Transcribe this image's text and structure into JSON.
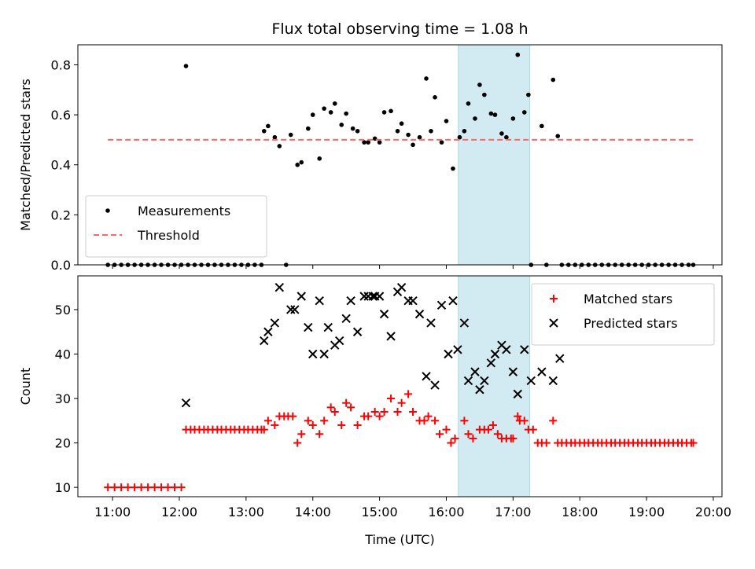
{
  "chart_data": {
    "title": "Flux total observing time = 1.08 h",
    "xlabel": "Time (UTC)",
    "x_ticks": [
      "11:00",
      "12:00",
      "13:00",
      "14:00",
      "15:00",
      "16:00",
      "17:00",
      "18:00",
      "19:00",
      "20:00"
    ],
    "x_unit": "hours UTC",
    "xlim": [
      10.48,
      20.13
    ],
    "shaded_interval": {
      "start": 16.18,
      "end": 17.25,
      "color": "#add8e6"
    },
    "panels": [
      {
        "type": "scatter",
        "ylabel": "Matched/Predicted stars",
        "ylim": [
          0.0,
          0.88
        ],
        "y_ticks": [
          "0.0",
          "0.2",
          "0.4",
          "0.6",
          "0.8"
        ],
        "y_tick_values": [
          0.0,
          0.2,
          0.4,
          0.6,
          0.8
        ],
        "legend": {
          "position": "lower left"
        },
        "series": [
          {
            "name": "Measurements",
            "marker": "dot",
            "color": "#000000",
            "x": [
              10.93,
              11.03,
              11.13,
              11.23,
              11.33,
              11.43,
              11.53,
              11.63,
              11.73,
              11.83,
              11.93,
              12.03,
              12.1,
              12.13,
              12.23,
              12.33,
              12.43,
              12.53,
              12.63,
              12.73,
              12.83,
              12.93,
              13.03,
              13.13,
              13.23,
              13.27,
              13.33,
              13.43,
              13.5,
              13.6,
              13.67,
              13.77,
              13.83,
              13.93,
              14.0,
              14.1,
              14.17,
              14.27,
              14.33,
              14.43,
              14.5,
              14.6,
              14.67,
              14.77,
              14.83,
              14.93,
              15.0,
              15.07,
              15.17,
              15.27,
              15.33,
              15.43,
              15.5,
              15.6,
              15.7,
              15.77,
              15.83,
              15.93,
              16.0,
              16.1,
              16.2,
              16.27,
              16.33,
              16.43,
              16.5,
              16.57,
              16.67,
              16.73,
              16.83,
              16.9,
              17.0,
              17.07,
              17.17,
              17.23,
              17.27,
              17.43,
              17.5,
              17.6,
              17.67,
              17.73,
              17.83,
              17.93,
              18.03,
              18.13,
              18.23,
              18.33,
              18.43,
              18.53,
              18.63,
              18.73,
              18.83,
              18.93,
              19.03,
              19.13,
              19.23,
              19.33,
              19.43,
              19.53,
              19.63,
              19.7
            ],
            "y": [
              0.0,
              0.0,
              0.0,
              0.0,
              0.0,
              0.0,
              0.0,
              0.0,
              0.0,
              0.0,
              0.0,
              0.0,
              0.795,
              0.0,
              0.0,
              0.0,
              0.0,
              0.0,
              0.0,
              0.0,
              0.0,
              0.0,
              0.0,
              0.0,
              0.0,
              0.535,
              0.555,
              0.51,
              0.475,
              0.0,
              0.52,
              0.4,
              0.41,
              0.545,
              0.6,
              0.425,
              0.625,
              0.61,
              0.645,
              0.56,
              0.605,
              0.545,
              0.535,
              0.49,
              0.49,
              0.505,
              0.49,
              0.61,
              0.615,
              0.535,
              0.565,
              0.52,
              0.48,
              0.51,
              0.745,
              0.535,
              0.67,
              0.49,
              0.575,
              0.385,
              0.51,
              0.535,
              0.645,
              0.585,
              0.72,
              0.68,
              0.605,
              0.6,
              0.525,
              0.51,
              0.585,
              0.84,
              0.61,
              0.68,
              0.0,
              0.555,
              0.0,
              0.74,
              0.515,
              0.0,
              0.0,
              0.0,
              0.0,
              0.0,
              0.0,
              0.0,
              0.0,
              0.0,
              0.0,
              0.0,
              0.0,
              0.0,
              0.0,
              0.0,
              0.0,
              0.0,
              0.0,
              0.0,
              0.0,
              0.0
            ]
          },
          {
            "name": "Threshold",
            "marker": "dashed-line",
            "color": "#ff6666",
            "x": [
              10.93,
              19.7
            ],
            "y": [
              0.5,
              0.5
            ]
          }
        ]
      },
      {
        "type": "scatter",
        "ylabel": "Count",
        "ylim": [
          7.9,
          57.6
        ],
        "y_ticks": [
          "10",
          "20",
          "30",
          "40",
          "50"
        ],
        "y_tick_values": [
          10,
          20,
          30,
          40,
          50
        ],
        "legend": {
          "position": "upper right"
        },
        "series": [
          {
            "name": "Matched stars",
            "marker": "plus",
            "color": "#ff0000",
            "x": [
              10.93,
              11.03,
              11.13,
              11.23,
              11.33,
              11.43,
              11.53,
              11.63,
              11.73,
              11.83,
              11.93,
              12.03,
              12.1,
              12.17,
              12.23,
              12.3,
              12.37,
              12.43,
              12.5,
              12.57,
              12.63,
              12.7,
              12.77,
              12.83,
              12.9,
              12.97,
              13.03,
              13.1,
              13.17,
              13.23,
              13.27,
              13.33,
              13.43,
              13.5,
              13.57,
              13.63,
              13.7,
              13.77,
              13.83,
              13.93,
              14.0,
              14.1,
              14.17,
              14.27,
              14.33,
              14.43,
              14.5,
              14.57,
              14.67,
              14.77,
              14.83,
              14.93,
              15.0,
              15.07,
              15.17,
              15.27,
              15.33,
              15.43,
              15.5,
              15.6,
              15.67,
              15.73,
              15.83,
              15.9,
              16.0,
              16.07,
              16.13,
              16.27,
              16.33,
              16.4,
              16.5,
              16.57,
              16.63,
              16.7,
              16.77,
              16.83,
              16.9,
              16.97,
              17.0,
              17.07,
              17.1,
              17.17,
              17.23,
              17.3,
              17.37,
              17.43,
              17.5,
              17.6,
              17.67,
              17.73,
              17.8,
              17.87,
              17.93,
              18.0,
              18.07,
              18.13,
              18.2,
              18.27,
              18.33,
              18.4,
              18.47,
              18.53,
              18.6,
              18.67,
              18.73,
              18.8,
              18.87,
              18.93,
              19.0,
              19.07,
              19.13,
              19.2,
              19.27,
              19.33,
              19.4,
              19.47,
              19.53,
              19.6,
              19.67,
              19.7
            ],
            "y": [
              10,
              10,
              10,
              10,
              10,
              10,
              10,
              10,
              10,
              10,
              10,
              10,
              23,
              23,
              23,
              23,
              23,
              23,
              23,
              23,
              23,
              23,
              23,
              23,
              23,
              23,
              23,
              23,
              23,
              23,
              23,
              25,
              24,
              26,
              26,
              26,
              26,
              20,
              22,
              25,
              24,
              22,
              25,
              28,
              27,
              24,
              29,
              28,
              24,
              26,
              26,
              27,
              26,
              27,
              30,
              27,
              29,
              31,
              27,
              25,
              25,
              26,
              25,
              22,
              23,
              20,
              21,
              25,
              22,
              21,
              23,
              23,
              23,
              24,
              22,
              21,
              21,
              21,
              21,
              26,
              25,
              25,
              23,
              23,
              20,
              20,
              20,
              25,
              20,
              20,
              20,
              20,
              20,
              20,
              20,
              20,
              20,
              20,
              20,
              20,
              20,
              20,
              20,
              20,
              20,
              20,
              20,
              20,
              20,
              20,
              20,
              20,
              20,
              20,
              20,
              20,
              20,
              20,
              20,
              20
            ]
          },
          {
            "name": "Predicted stars",
            "marker": "x",
            "color": "#000000",
            "x": [
              12.1,
              13.27,
              13.33,
              13.43,
              13.5,
              13.67,
              13.73,
              13.83,
              13.93,
              14.0,
              14.1,
              14.17,
              14.23,
              14.33,
              14.4,
              14.5,
              14.57,
              14.67,
              14.77,
              14.83,
              14.9,
              14.93,
              15.0,
              15.07,
              15.17,
              15.27,
              15.33,
              15.43,
              15.5,
              15.6,
              15.7,
              15.77,
              15.83,
              15.93,
              16.03,
              16.1,
              16.17,
              16.27,
              16.33,
              16.43,
              16.5,
              16.57,
              16.67,
              16.73,
              16.83,
              16.9,
              17.0,
              17.07,
              17.17,
              17.27,
              17.43,
              17.6,
              17.7
            ],
            "y": [
              29,
              43,
              45,
              47,
              55,
              50,
              50,
              53,
              46,
              40,
              52,
              40,
              46,
              42,
              43,
              48,
              52,
              45,
              53,
              53,
              53,
              53,
              53,
              49,
              44,
              54,
              55,
              52,
              52,
              49,
              35,
              47,
              33,
              51,
              40,
              52,
              41,
              47,
              34,
              36,
              32,
              34,
              38,
              40,
              42,
              41,
              36,
              31,
              41,
              34,
              36,
              34,
              39
            ]
          }
        ]
      }
    ]
  }
}
